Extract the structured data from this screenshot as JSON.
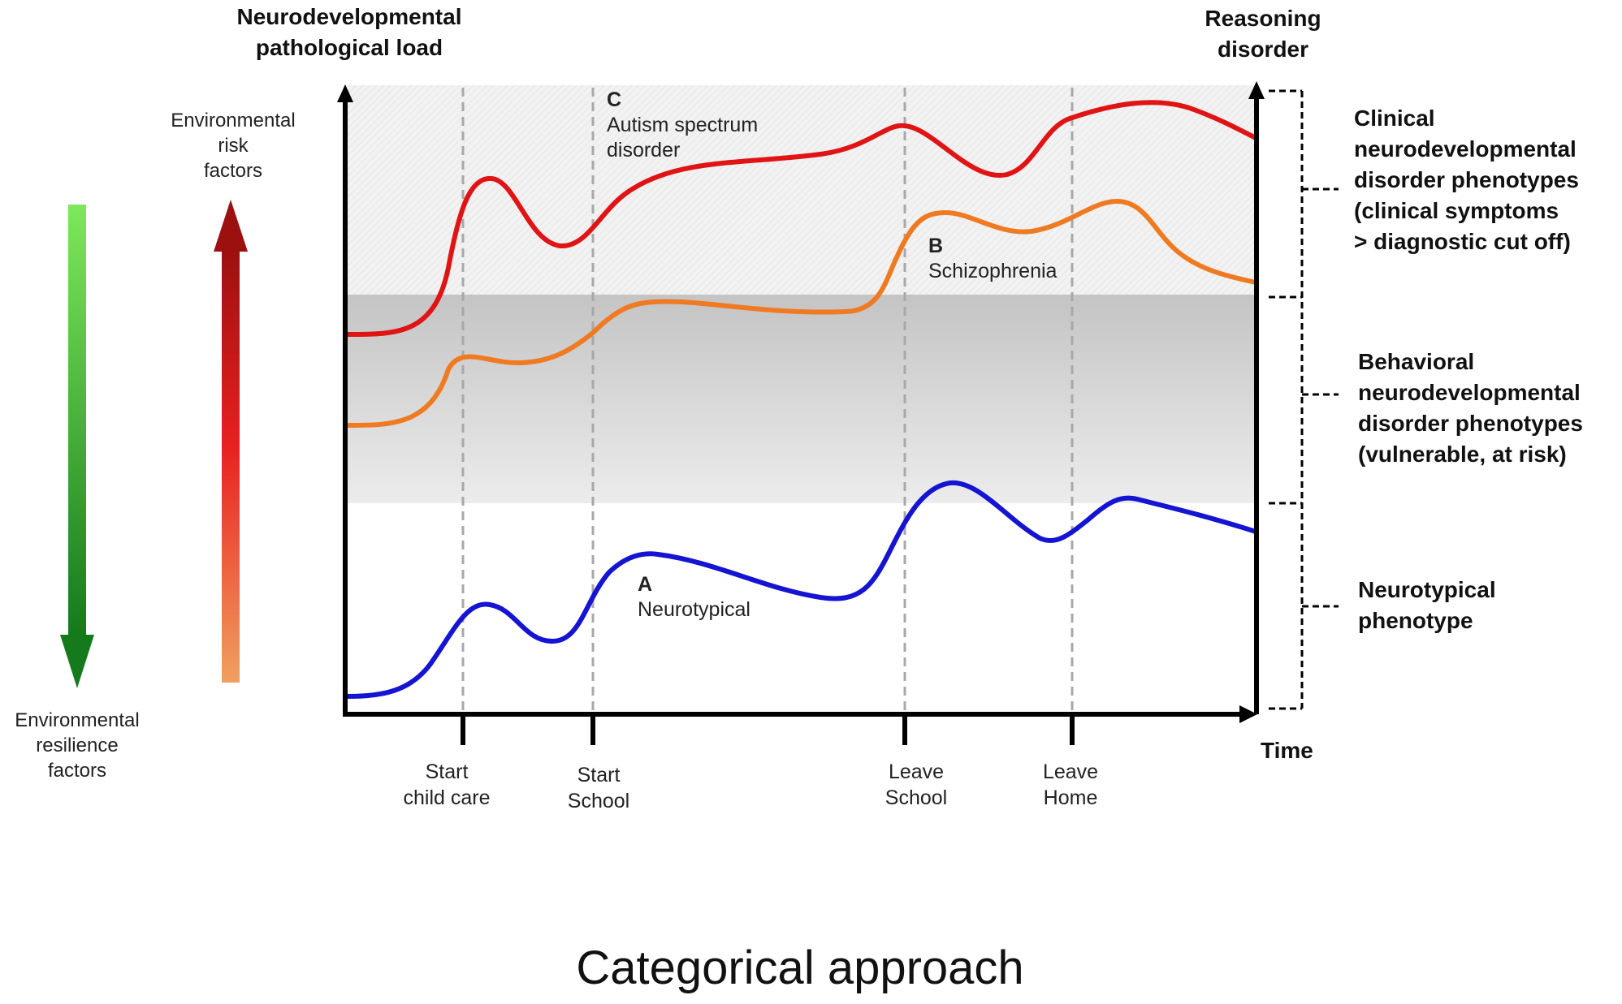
{
  "headers": {
    "left_axis": [
      "Neurodevelopmental",
      "pathological load"
    ],
    "right_axis": [
      "Reasoning",
      "disorder"
    ],
    "time": "Time"
  },
  "side_labels": {
    "risk": [
      "Environmental",
      "risk",
      "factors"
    ],
    "resilience": [
      "Environmental",
      "resilience",
      "factors"
    ]
  },
  "phenotypes": {
    "clinical": [
      "Clinical",
      "neurodevelopmental",
      "disorder phenotypes",
      "(clinical symptoms",
      "> diagnostic cut off)"
    ],
    "behavioral": [
      "Behavioral",
      "neurodevelopmental",
      "disorder phenotypes",
      "(vulnerable, at risk)"
    ],
    "neurotypical": [
      "Neurotypical",
      "phenotype"
    ]
  },
  "milestones": [
    {
      "line1": "Start",
      "line2": "child care"
    },
    {
      "line1": "Start",
      "line2": "School"
    },
    {
      "line1": "Leave",
      "line2": "School"
    },
    {
      "line1": "Leave",
      "line2": "Home"
    }
  ],
  "curves": {
    "A": {
      "letter": "A",
      "name": "Neurotypical",
      "color": "#1414d2"
    },
    "B": {
      "letter": "B",
      "name": "Schizophrenia",
      "color": "#ef7a22"
    },
    "C": {
      "letter": "C",
      "name_line1": "Autism spectrum",
      "name_line2": "disorder",
      "color": "#e01414"
    }
  },
  "caption": "Categorical approach"
}
